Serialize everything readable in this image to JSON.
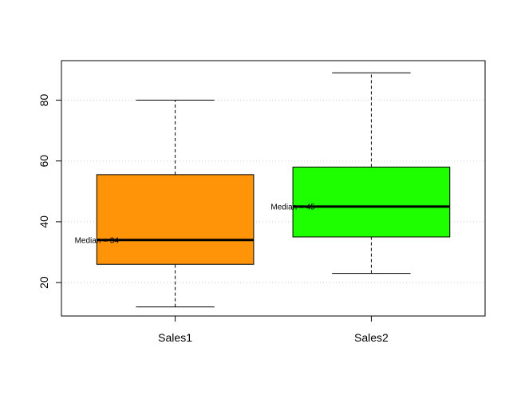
{
  "chart_data": {
    "type": "boxplot",
    "title": "",
    "xlabel": "",
    "ylabel": "",
    "ylim": [
      9,
      93
    ],
    "yticks": [
      20,
      40,
      60,
      80
    ],
    "grid": "horizontal dotted",
    "legend": "none",
    "categories": [
      "Sales1",
      "Sales2"
    ],
    "boxes": [
      {
        "name": "Sales1",
        "min": 12,
        "q1": 26,
        "median": 34,
        "q3": 55.5,
        "max": 80,
        "color": "#FF9408",
        "median_label": "Median = 34"
      },
      {
        "name": "Sales2",
        "min": 23,
        "q1": 35,
        "median": 45,
        "q3": 58,
        "max": 89,
        "color": "#1EFF00",
        "median_label": "Median = 45"
      }
    ]
  }
}
